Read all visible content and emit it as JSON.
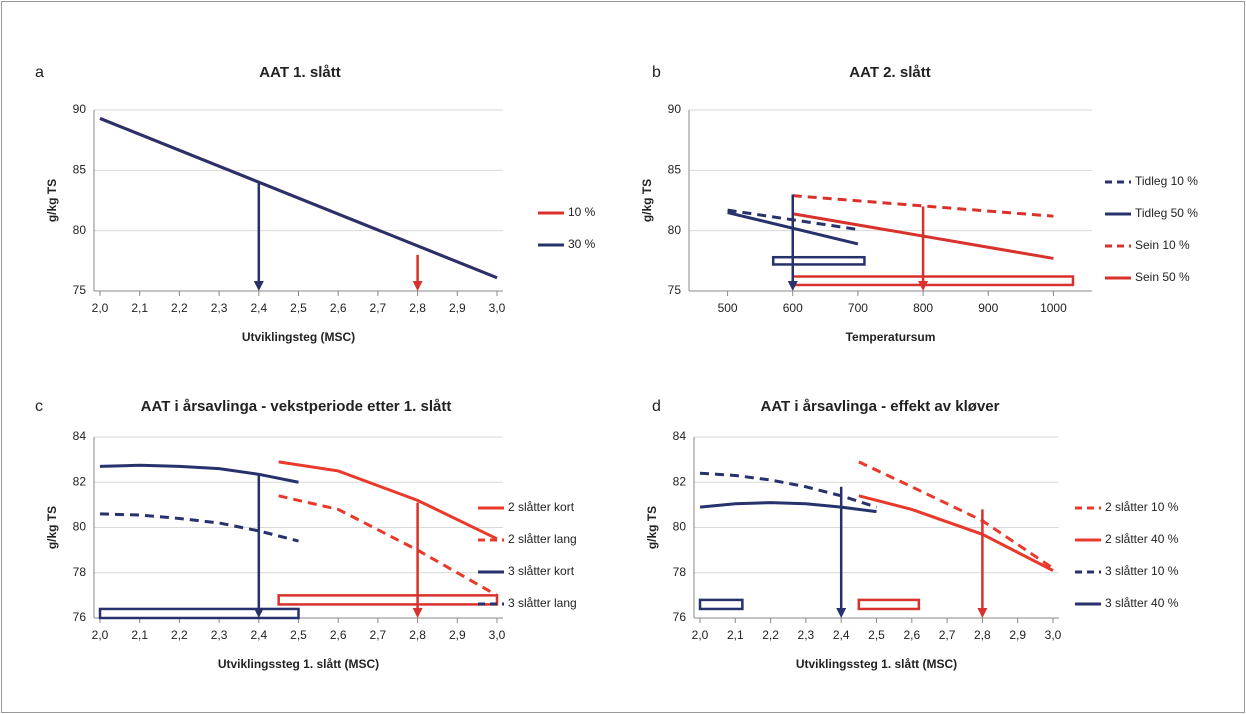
{
  "chart_data": [
    {
      "type": "line",
      "panel": "a",
      "title": "AAT 1. slått",
      "xlabel": "Utviklingsteg (MSC)",
      "ylabel": "g/kg TS",
      "xlim": [
        2.0,
        3.0
      ],
      "ylim": [
        75,
        90
      ],
      "yticks": [
        75,
        80,
        85,
        90
      ],
      "grid": true,
      "xticks": [
        {
          "value": 2.0,
          "label": "2,0"
        },
        {
          "value": 2.1,
          "label": "2,1"
        },
        {
          "value": 2.2,
          "label": "2,2"
        },
        {
          "value": 2.3,
          "label": "2,3"
        },
        {
          "value": 2.4,
          "label": "2,4"
        },
        {
          "value": 2.5,
          "label": "2,5"
        },
        {
          "value": 2.6,
          "label": "2,6"
        },
        {
          "value": 2.7,
          "label": "2,7"
        },
        {
          "value": 2.8,
          "label": "2,8"
        },
        {
          "value": 2.9,
          "label": "2,9"
        },
        {
          "value": 3,
          "label": "3,0"
        }
      ],
      "series": [
        {
          "name": "10 %",
          "color": "#d9312b",
          "dashed": false,
          "x": [
            2.0,
            3.0
          ],
          "values": [
            89.3,
            76.1
          ]
        },
        {
          "name": "30 %",
          "color": "#27316b",
          "dashed": false,
          "x": [
            2.0,
            3.0
          ],
          "values": [
            89.3,
            76.1
          ]
        }
      ],
      "arrows": [
        {
          "color": "#27316b",
          "x": 2.4,
          "y": [
            84,
            75
          ]
        },
        {
          "color": "#d9312b",
          "x": 2.8,
          "y": [
            78,
            75
          ]
        }
      ],
      "boxes": []
    },
    {
      "type": "line",
      "panel": "b",
      "title": "AAT 2. slått",
      "xlabel": "Temperatursum",
      "ylabel": "g/kg TS",
      "xlim": [
        450,
        1050
      ],
      "ylim": [
        75,
        90
      ],
      "yticks": [
        75,
        80,
        85,
        90
      ],
      "grid": true,
      "xticks": [
        500,
        600,
        700,
        800,
        900,
        1000
      ],
      "series": [
        {
          "name": "Tidleg 10 %",
          "color": "#27316b",
          "dashed": true,
          "x": [
            500,
            700
          ],
          "values": [
            81.7,
            80.1
          ]
        },
        {
          "name": "Tidleg 50 %",
          "color": "#27316b",
          "dashed": false,
          "x": [
            500,
            700
          ],
          "values": [
            81.5,
            78.9
          ]
        },
        {
          "name": "Sein 10 %",
          "color": "#d9312b",
          "dashed": true,
          "x": [
            600,
            1000
          ],
          "values": [
            82.9,
            81.2
          ]
        },
        {
          "name": "Sein 50 %",
          "color": "#d9312b",
          "dashed": false,
          "x": [
            600,
            1000
          ],
          "values": [
            81.4,
            77.7
          ]
        }
      ],
      "arrows": [
        {
          "color": "#27316b",
          "x": 600,
          "y": [
            83,
            75
          ]
        },
        {
          "color": "#d9312b",
          "x": 800,
          "y": [
            82,
            75
          ]
        }
      ],
      "boxes": [
        {
          "color": "#27316b",
          "x": [
            570,
            710
          ],
          "y": [
            77.2,
            77.8
          ]
        },
        {
          "color": "#d9312b",
          "x": [
            600,
            1030
          ],
          "y": [
            75.5,
            76.2
          ]
        }
      ]
    },
    {
      "type": "line",
      "panel": "c",
      "title": "AAT i årsavlinga - vekstperiode etter 1. slått",
      "xlabel": "Utviklingssteg 1. slått (MSC)",
      "ylabel": "g/kg TS",
      "xlim": [
        2.0,
        3.0
      ],
      "ylim": [
        76,
        84
      ],
      "yticks": [
        76,
        78,
        80,
        82,
        84
      ],
      "grid": true,
      "xticks": [
        {
          "value": 2.0,
          "label": "2,0"
        },
        {
          "value": 2.1,
          "label": "2,1"
        },
        {
          "value": 2.2,
          "label": "2,2"
        },
        {
          "value": 2.3,
          "label": "2,3"
        },
        {
          "value": 2.4,
          "label": "2,4"
        },
        {
          "value": 2.5,
          "label": "2,5"
        },
        {
          "value": 2.6,
          "label": "2,6"
        },
        {
          "value": 2.7,
          "label": "2,7"
        },
        {
          "value": 2.8,
          "label": "2,8"
        },
        {
          "value": 2.9,
          "label": "2,9"
        },
        {
          "value": 3,
          "label": "3,0"
        }
      ],
      "series": [
        {
          "name": "2 slåtter kort",
          "color": "#e8392b",
          "dashed": false,
          "x": [
            2.45,
            2.6,
            2.8,
            3.0
          ],
          "values": [
            82.9,
            82.5,
            81.2,
            79.5
          ]
        },
        {
          "name": "2 slåtter lang",
          "color": "#e8392b",
          "dashed": true,
          "x": [
            2.45,
            2.6,
            2.8,
            3.0
          ],
          "values": [
            81.4,
            80.8,
            79.0,
            77.0
          ]
        },
        {
          "name": "3 slåtter kort",
          "color": "#27316b",
          "dashed": false,
          "x": [
            2.0,
            2.1,
            2.2,
            2.3,
            2.4,
            2.5
          ],
          "values": [
            82.7,
            82.75,
            82.7,
            82.6,
            82.35,
            82.0
          ]
        },
        {
          "name": "3 slåtter lang",
          "color": "#27316b",
          "dashed": true,
          "x": [
            2.0,
            2.1,
            2.2,
            2.3,
            2.4,
            2.5
          ],
          "values": [
            80.6,
            80.55,
            80.4,
            80.2,
            79.85,
            79.4
          ]
        }
      ],
      "arrows": [
        {
          "color": "#27316b",
          "x": 2.4,
          "y": [
            82.3,
            76
          ]
        },
        {
          "color": "#d9312b",
          "x": 2.8,
          "y": [
            81.1,
            76
          ]
        }
      ],
      "boxes": [
        {
          "color": "#27316b",
          "x": [
            2.0,
            2.5
          ],
          "y": [
            76,
            76.4
          ]
        },
        {
          "color": "#d9312b",
          "x": [
            2.45,
            3.0
          ],
          "y": [
            76.6,
            77.0
          ]
        }
      ]
    },
    {
      "type": "line",
      "panel": "d",
      "title": "AAT i årsavlinga - effekt av kløver",
      "xlabel": "Utviklingssteg 1. slått (MSC)",
      "ylabel": "g/kg TS",
      "xlim": [
        2.0,
        3.0
      ],
      "ylim": [
        76,
        84
      ],
      "yticks": [
        76,
        78,
        80,
        82,
        84
      ],
      "grid": true,
      "xticks": [
        {
          "value": 2.0,
          "label": "2,0"
        },
        {
          "value": 2.1,
          "label": "2,1"
        },
        {
          "value": 2.2,
          "label": "2,2"
        },
        {
          "value": 2.3,
          "label": "2,3"
        },
        {
          "value": 2.4,
          "label": "2,4"
        },
        {
          "value": 2.5,
          "label": "2,5"
        },
        {
          "value": 2.6,
          "label": "2,6"
        },
        {
          "value": 2.7,
          "label": "2,7"
        },
        {
          "value": 2.8,
          "label": "2,8"
        },
        {
          "value": 2.9,
          "label": "2,9"
        },
        {
          "value": 3,
          "label": "3,0"
        }
      ],
      "series": [
        {
          "name": "2 slåtter 10 %",
          "color": "#e8392b",
          "dashed": true,
          "x": [
            2.45,
            2.6,
            2.8,
            3.0
          ],
          "values": [
            82.9,
            81.8,
            80.3,
            78.2
          ]
        },
        {
          "name": "2 slåtter 40 %",
          "color": "#e8392b",
          "dashed": false,
          "x": [
            2.45,
            2.6,
            2.8,
            3.0
          ],
          "values": [
            81.4,
            80.8,
            79.7,
            78.1
          ]
        },
        {
          "name": "3 slåtter 10 %",
          "color": "#27316b",
          "dashed": true,
          "x": [
            2.0,
            2.1,
            2.2,
            2.3,
            2.4,
            2.5
          ],
          "values": [
            82.4,
            82.3,
            82.1,
            81.8,
            81.4,
            80.9
          ]
        },
        {
          "name": "3 slåtter 40 %",
          "color": "#27316b",
          "dashed": false,
          "x": [
            2.0,
            2.1,
            2.2,
            2.3,
            2.4,
            2.5
          ],
          "values": [
            80.9,
            81.05,
            81.1,
            81.05,
            80.9,
            80.7
          ]
        }
      ],
      "arrows": [
        {
          "color": "#27316b",
          "x": 2.4,
          "y": [
            81.8,
            76
          ]
        },
        {
          "color": "#d9312b",
          "x": 2.8,
          "y": [
            80.8,
            76
          ]
        }
      ],
      "boxes": [
        {
          "color": "#27316b",
          "x": [
            2.0,
            2.12
          ],
          "y": [
            76.4,
            76.8
          ]
        },
        {
          "color": "#d9312b",
          "x": [
            2.45,
            2.62
          ],
          "y": [
            76.4,
            76.8
          ]
        }
      ]
    }
  ]
}
